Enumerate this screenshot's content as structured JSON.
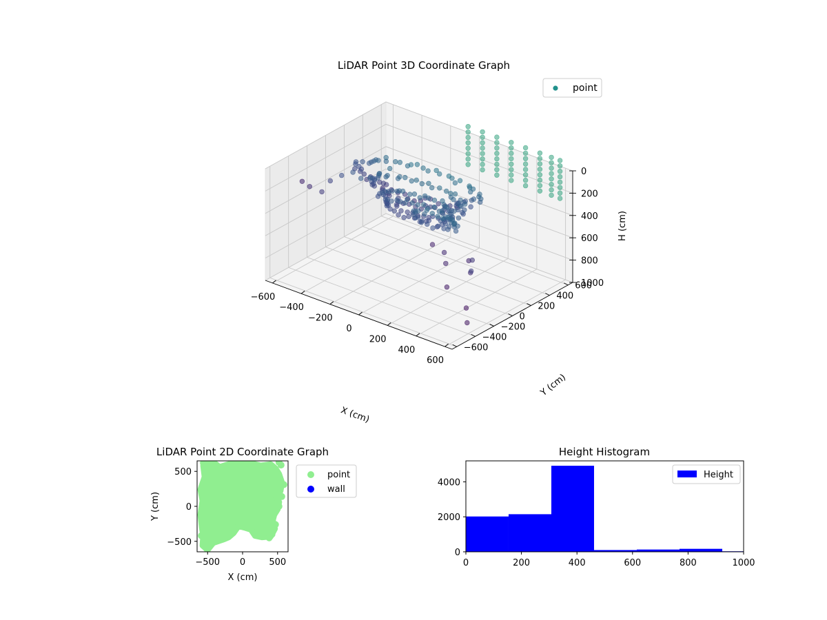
{
  "chart_data": [
    {
      "type": "scatter3d",
      "title": "LiDAR Point 3D Coordinate Graph",
      "xlabel": "X (cm)",
      "ylabel": "Y (cm)",
      "zlabel": "H (cm)",
      "xlim": [
        -650,
        650
      ],
      "ylim": [
        -650,
        650
      ],
      "zlim": [
        0,
        1000
      ],
      "z_inverted": true,
      "x_ticks": [
        -600,
        -400,
        -200,
        0,
        200,
        400,
        600
      ],
      "y_ticks": [
        -600,
        -400,
        -200,
        0,
        200,
        400,
        600
      ],
      "z_ticks": [
        0,
        200,
        400,
        600,
        800,
        1000
      ],
      "legend": {
        "position": "top-right",
        "entries": [
          {
            "label": "point",
            "color": "#21918c"
          }
        ]
      },
      "colormap": "viridis",
      "grid": true,
      "series": [
        {
          "name": "point",
          "groups": [
            {
              "shape": "ring",
              "count": 62,
              "center": [
                0,
                0
              ],
              "radius": [
                380,
                200
              ],
              "h": [
                110,
                130
              ]
            },
            {
              "shape": "ring",
              "count": 52,
              "center": [
                0,
                0
              ],
              "radius": [
                300,
                150
              ],
              "h": [
                210,
                230
              ]
            },
            {
              "shape": "ring",
              "count": 44,
              "center": [
                0,
                0
              ],
              "radius": [
                240,
                120
              ],
              "h": [
                300,
                330
              ]
            },
            {
              "shape": "ring",
              "count": 36,
              "center": [
                0,
                0
              ],
              "radius": [
                200,
                100
              ],
              "h": [
                360,
                400
              ]
            },
            {
              "shape": "ring",
              "count": 28,
              "center": [
                80,
                50
              ],
              "radius": [
                150,
                80
              ],
              "h": [
                420,
                460
              ]
            },
            {
              "shape": "columns",
              "xs": [
                -20,
                80,
                180,
                280,
                380,
                480,
                560,
                620
              ],
              "y": [
                -500,
                560
              ],
              "h": [
                -120,
                220
              ]
            },
            {
              "shape": "scattered",
              "pts": [
                [
                  -620,
                  -300,
                  260
                ],
                [
                  -600,
                  -250,
                  320
                ],
                [
                  -560,
                  -180,
                  380
                ],
                [
                  -540,
                  -120,
                  300
                ],
                [
                  -500,
                  -60,
                  260
                ],
                [
                  -460,
                  0,
                  240
                ],
                [
                  -430,
                  40,
                  300
                ],
                [
                  -380,
                  60,
                  280
                ],
                [
                  -340,
                  100,
                  240
                ],
                [
                  -300,
                  150,
                  200
                ],
                [
                  540,
                  -300,
                  420
                ],
                [
                  520,
                  -250,
                  560
                ],
                [
                  500,
                  -200,
                  480
                ],
                [
                  460,
                  -150,
                  620
                ],
                [
                  600,
                  -420,
                  760
                ],
                [
                  580,
                  -380,
                  920
                ],
                [
                  420,
                  -350,
                  690
                ],
                [
                  380,
                  -300,
                  520
                ],
                [
                  350,
                  -270,
                  450
                ],
                [
                  300,
                  -320,
                  380
                ]
              ]
            }
          ]
        }
      ]
    },
    {
      "type": "scatter",
      "title": "LiDAR Point 2D Coordinate Graph",
      "xlabel": "X (cm)",
      "ylabel": "Y (cm)",
      "xlim": [
        -650,
        650
      ],
      "ylim": [
        -650,
        650
      ],
      "x_ticks": [
        -500,
        0,
        500
      ],
      "y_ticks": [
        -500,
        0,
        500
      ],
      "legend": {
        "position": "outside-right",
        "entries": [
          {
            "label": "point",
            "color": "#90ee90"
          },
          {
            "label": "wall",
            "color": "#0000ff"
          }
        ]
      },
      "series": [
        {
          "name": "point",
          "color": "#90ee90",
          "blob": [
            [
              -560,
              580
            ],
            [
              -520,
              640
            ],
            [
              -430,
              640
            ],
            [
              -330,
              560
            ],
            [
              -200,
              600
            ],
            [
              -60,
              640
            ],
            [
              100,
              620
            ],
            [
              260,
              580
            ],
            [
              400,
              600
            ],
            [
              470,
              540
            ],
            [
              520,
              460
            ],
            [
              560,
              340
            ],
            [
              540,
              220
            ],
            [
              480,
              140
            ],
            [
              520,
              60
            ],
            [
              500,
              -40
            ],
            [
              450,
              -120
            ],
            [
              430,
              -200
            ],
            [
              460,
              -320
            ],
            [
              400,
              -430
            ],
            [
              280,
              -440
            ],
            [
              180,
              -420
            ],
            [
              120,
              -330
            ],
            [
              20,
              -300
            ],
            [
              -60,
              -280
            ],
            [
              -130,
              -380
            ],
            [
              -200,
              -440
            ],
            [
              -270,
              -470
            ],
            [
              -420,
              -520
            ],
            [
              -500,
              -620
            ],
            [
              -570,
              -560
            ],
            [
              -560,
              -420
            ],
            [
              -580,
              -300
            ],
            [
              -600,
              -120
            ],
            [
              -570,
              80
            ],
            [
              -600,
              240
            ],
            [
              -540,
              420
            ]
          ],
          "extra": [
            [
              -560,
              620
            ],
            [
              -540,
              520
            ],
            [
              -480,
              640
            ],
            [
              520,
              630
            ],
            [
              550,
              590
            ],
            [
              460,
              520
            ],
            [
              590,
              310
            ],
            [
              560,
              140
            ],
            [
              520,
              0
            ],
            [
              470,
              -260
            ],
            [
              420,
              -400
            ],
            [
              380,
              -450
            ],
            [
              -510,
              -610
            ],
            [
              -560,
              -520
            ],
            [
              -590,
              -420
            ],
            [
              -320,
              -420
            ],
            [
              300,
              -380
            ]
          ]
        },
        {
          "name": "wall",
          "color": "#0000ff",
          "points": []
        }
      ]
    },
    {
      "type": "histogram",
      "title": "Height Histogram",
      "xlabel": "",
      "ylabel": "",
      "xlim": [
        0,
        1000
      ],
      "ylim": [
        0,
        5200
      ],
      "x_ticks": [
        0,
        200,
        400,
        600,
        800,
        1000
      ],
      "y_ticks": [
        0,
        2000,
        4000
      ],
      "legend": {
        "position": "top-right",
        "entries": [
          {
            "label": "Height",
            "color": "#0000ff"
          }
        ]
      },
      "series": [
        {
          "name": "Height",
          "color": "#0000ff",
          "bins": [
            0,
            153.8,
            307.7,
            461.5,
            615.4,
            769.2,
            923.1,
            1076.9
          ],
          "counts": [
            2020,
            2150,
            4920,
            100,
            130,
            170,
            30
          ]
        }
      ]
    }
  ]
}
